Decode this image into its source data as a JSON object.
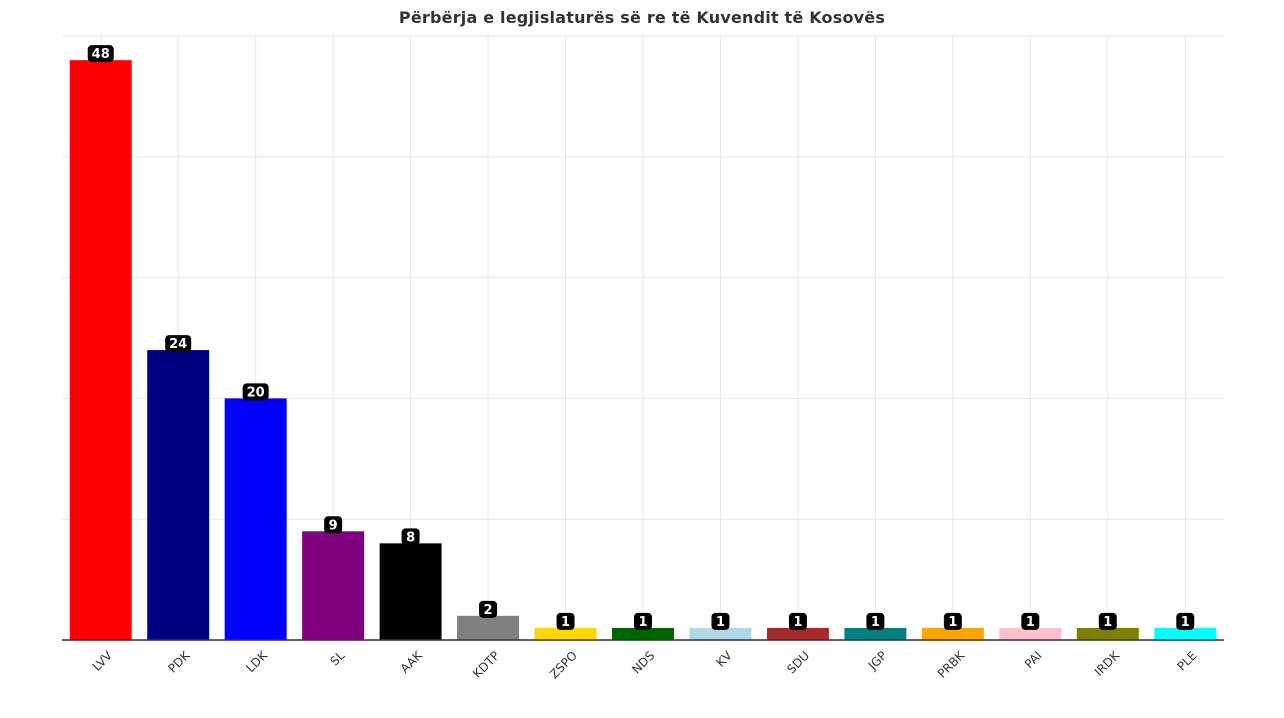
{
  "chart_data": {
    "type": "bar",
    "title": "Përbërja e legjislaturës së re të Kuvendit të Kosovës",
    "xlabel": "",
    "ylabel": "",
    "ylim": [
      0,
      50
    ],
    "grid": true,
    "categories": [
      "LVV",
      "PDK",
      "LDK",
      "SL",
      "AAK",
      "KDTP",
      "ZSPO",
      "NDS",
      "KV",
      "SDU",
      "JGP",
      "PRBK",
      "PAI",
      "IRDK",
      "PLE"
    ],
    "values": [
      48,
      24,
      20,
      9,
      8,
      2,
      1,
      1,
      1,
      1,
      1,
      1,
      1,
      1,
      1
    ],
    "data_labels": [
      "48",
      "24",
      "20",
      "9",
      "8",
      "2",
      "1",
      "1",
      "1",
      "1",
      "1",
      "1",
      "1",
      "1",
      "1"
    ],
    "colors": [
      "#ff0000",
      "#000080",
      "#0000ff",
      "#800080",
      "#000000",
      "#808080",
      "#ffd700",
      "#006400",
      "#add8e6",
      "#a52a2a",
      "#008080",
      "#ffa500",
      "#ffc0cb",
      "#808000",
      "#00ffff"
    ]
  }
}
